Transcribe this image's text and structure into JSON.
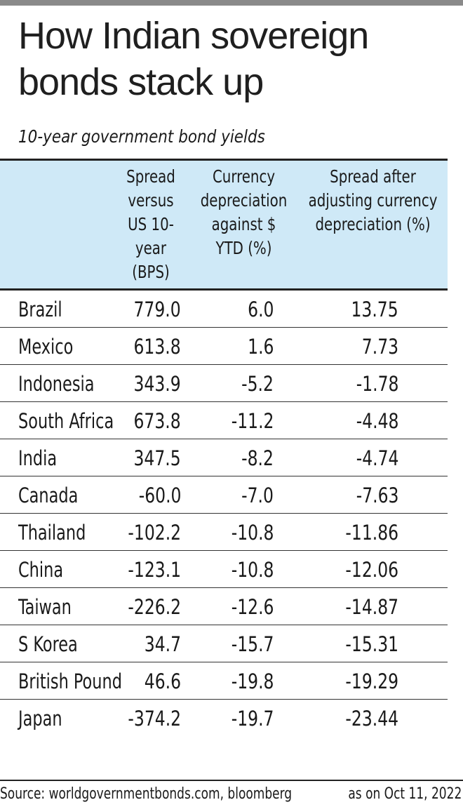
{
  "title": "How Indian sovereign bonds stack up",
  "subtitle": "10-year government bond yields",
  "chart_data": {
    "type": "table",
    "columns": [
      "",
      "Spread versus US 10-year (BPS)",
      "Currency depreciation against $ YTD (%)",
      "Spread after adjusting currency depreciation (%)"
    ],
    "rows": [
      {
        "country": "Brazil",
        "spread": "779.0",
        "depreciation": "6.0",
        "adjusted": "13.75"
      },
      {
        "country": "Mexico",
        "spread": "613.8",
        "depreciation": "1.6",
        "adjusted": "7.73"
      },
      {
        "country": "Indonesia",
        "spread": "343.9",
        "depreciation": "-5.2",
        "adjusted": "-1.78"
      },
      {
        "country": "South Africa",
        "spread": "673.8",
        "depreciation": "-11.2",
        "adjusted": "-4.48"
      },
      {
        "country": "India",
        "spread": "347.5",
        "depreciation": "-8.2",
        "adjusted": "-4.74"
      },
      {
        "country": "Canada",
        "spread": "-60.0",
        "depreciation": "-7.0",
        "adjusted": "-7.63"
      },
      {
        "country": "Thailand",
        "spread": "-102.2",
        "depreciation": "-10.8",
        "adjusted": "-11.86"
      },
      {
        "country": "China",
        "spread": "-123.1",
        "depreciation": "-10.8",
        "adjusted": "-12.06"
      },
      {
        "country": "Taiwan",
        "spread": "-226.2",
        "depreciation": "-12.6",
        "adjusted": "-14.87"
      },
      {
        "country": "S Korea",
        "spread": "34.7",
        "depreciation": "-15.7",
        "adjusted": "-15.31"
      },
      {
        "country": "British Pound",
        "spread": "46.6",
        "depreciation": "-19.8",
        "adjusted": "-19.29"
      },
      {
        "country": "Japan",
        "spread": "-374.2",
        "depreciation": "-19.7",
        "adjusted": "-23.44"
      }
    ]
  },
  "footer": {
    "source": "Source: worldgovernmentbonds.com, bloomberg",
    "as_of": "as on Oct 11, 2022"
  },
  "colors": {
    "header_bg": "#cfe9f7",
    "top_bar": "#8a8a8a"
  }
}
